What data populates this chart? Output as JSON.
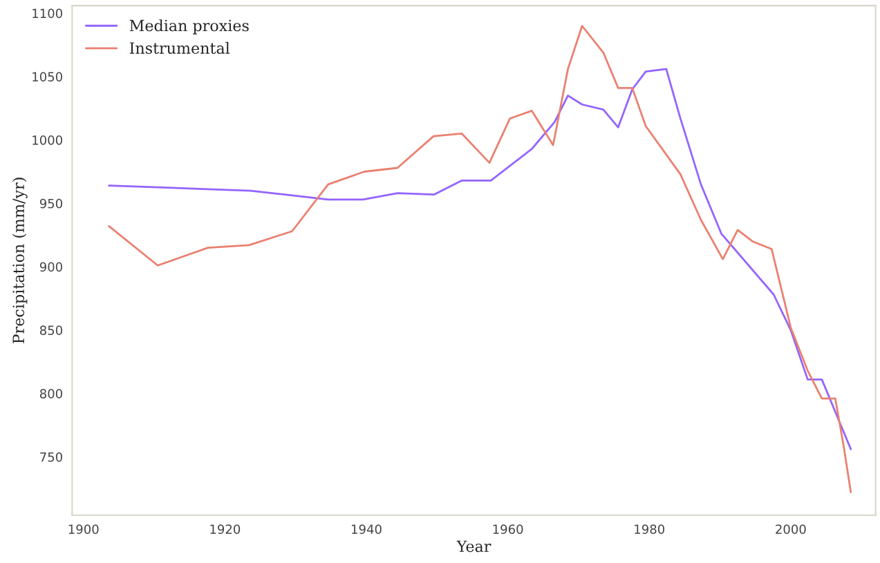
{
  "chart_data": {
    "type": "line",
    "xlabel": "Year",
    "ylabel": "Precipitation (mm/yr)",
    "xlim": [
      1898.4,
      2012
    ],
    "ylim": [
      704,
      1106
    ],
    "xticks": [
      1900,
      1920,
      1940,
      1960,
      1980,
      2000
    ],
    "yticks": [
      750,
      800,
      850,
      900,
      950,
      1000,
      1050,
      1100
    ],
    "grid": false,
    "legend": "top left",
    "series": [
      {
        "name": "Median proxies",
        "color": "#9464ff",
        "x": [
          1903.6,
          1923.6,
          1930,
          1934.6,
          1939.5,
          1944.4,
          1949.6,
          1953.5,
          1957.6,
          1963.4,
          1966.6,
          1968.5,
          1970.5,
          1973.5,
          1975.6,
          1977.6,
          1979.5,
          1982.4,
          1984.4,
          1987.3,
          1990.2,
          1997.6,
          2000,
          2002.4,
          2004.4,
          2008.5
        ],
        "values": [
          964,
          960,
          956,
          953,
          953,
          958,
          957,
          968,
          968,
          993,
          1014,
          1035,
          1028,
          1024,
          1010,
          1040,
          1054,
          1056,
          1017,
          965,
          926,
          878,
          850,
          811,
          811,
          756
        ]
      },
      {
        "name": "Instrumental",
        "color": "#ea8070",
        "x": [
          1903.6,
          1910.5,
          1917.6,
          1923.4,
          1929.5,
          1934.6,
          1939.7,
          1944.4,
          1949.5,
          1953.5,
          1957.4,
          1960.3,
          1963.4,
          1966.4,
          1968.5,
          1970.5,
          1973.5,
          1975.6,
          1977.6,
          1979.5,
          1984.4,
          1987.3,
          1990.4,
          1992.5,
          1994.6,
          1997.3,
          2000,
          2002.4,
          2004.4,
          2006.3,
          2007.5,
          2008.5
        ],
        "values": [
          932,
          901,
          915,
          917,
          928,
          965,
          975,
          978,
          1003,
          1005,
          982,
          1017,
          1023,
          996,
          1056,
          1090,
          1069,
          1041,
          1041,
          1011,
          973,
          937,
          906,
          929,
          920,
          914,
          852,
          818,
          796,
          796,
          758,
          722
        ]
      }
    ]
  }
}
